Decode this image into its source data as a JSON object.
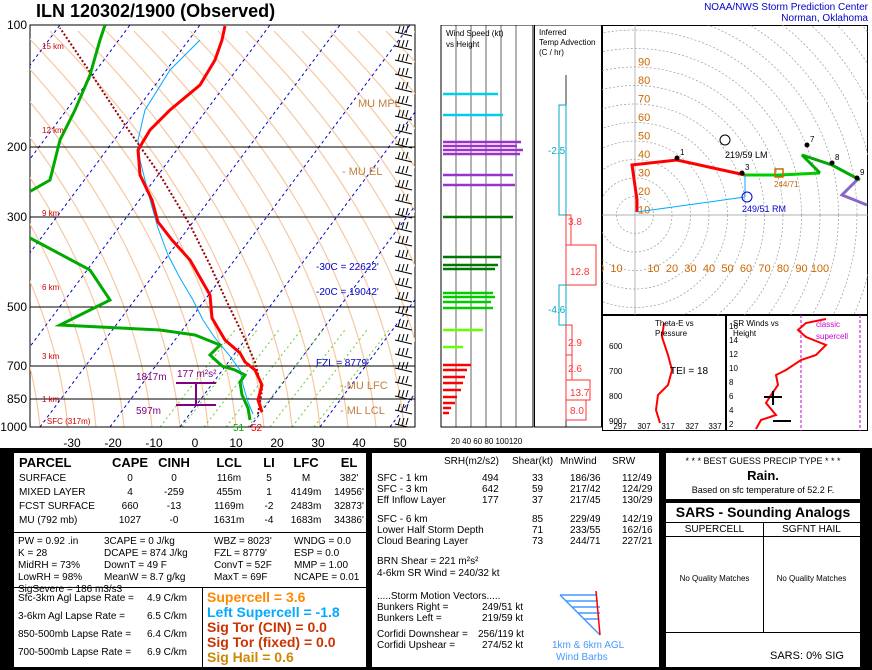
{
  "header": {
    "title": "ILN   120302/1900  (Observed)",
    "spc_line1": "NOAA/NWS Storm Prediction Center",
    "spc_line2": "Norman, Oklahoma"
  },
  "skewt": {
    "pressure_labels": [
      "100",
      "200",
      "300",
      "500",
      "700",
      "850",
      "1000"
    ],
    "temp_labels": [
      "-30",
      "-20",
      "-10",
      "0",
      "10",
      "20",
      "30",
      "40",
      "50"
    ],
    "height_labels": [
      "15 km",
      "12 km",
      "9 km",
      "6 km",
      "3 km",
      "1 km",
      "- SFC (317m)"
    ],
    "annotations": {
      "mu_mpl": "MU MPL",
      "mu_el": "- MU EL",
      "minus30": "-30C = 22622'",
      "minus20": "-20C = 19042'",
      "fzl": "FZL = 8779'",
      "mu_lfc": "- MU LFC",
      "ml_lcl": "- ML LCL",
      "eff_top": "1817m",
      "eff_srh": "177 m²s²",
      "eff_bot": "597m",
      "sfc_temps": "51",
      "sfc_temps2": "52"
    },
    "colors": {
      "temp": "#ff0000",
      "dewpoint": "#00aa00",
      "parcel": "#990000",
      "wetbulb": "#00aaff"
    }
  },
  "wind_speed_panel": {
    "title1": "Wind Speed (kt)",
    "title2": "vs Height",
    "axis": "20 40 60 80 100120"
  },
  "temp_adv_panel": {
    "title1": "Inferred",
    "title2": "Temp Advection",
    "title3": "(C / hr)",
    "values": [
      "-2.5",
      "3.8",
      "12.8",
      "-4.6",
      "2.9",
      "2.6",
      "13.7",
      "8.0"
    ]
  },
  "hodograph": {
    "ring_labels_x": [
      "20",
      "10",
      "10",
      "20",
      "30",
      "40",
      "50",
      "60",
      "70",
      "80",
      "90",
      "100"
    ],
    "ring_labels_y": [
      "90",
      "80",
      "70",
      "60",
      "50",
      "40",
      "30",
      "20",
      "10"
    ],
    "points": [
      "1",
      "3",
      "7",
      "8",
      "9"
    ],
    "lm": "219/59 LM",
    "rm": "249/51 RM",
    "mean": "244/71"
  },
  "theta_panel": {
    "title1": "Theta-E vs",
    "title2": "Pressure",
    "tei": "TEI = 18",
    "y_labels": [
      "600",
      "700",
      "800",
      "900"
    ],
    "x_labels": [
      "297",
      "307",
      "317",
      "327",
      "337"
    ]
  },
  "srwind_panel": {
    "title1": "SR Winds vs",
    "title2": "Height",
    "classic1": "classic",
    "classic2": "supercell",
    "y_labels": [
      "16",
      "14",
      "12",
      "10",
      "8",
      "6",
      "4",
      "2"
    ]
  },
  "parcel_table": {
    "headers": [
      "PARCEL",
      "CAPE",
      "CINH",
      "LCL",
      "LI",
      "LFC",
      "EL"
    ],
    "rows": [
      [
        "SURFACE",
        "0",
        "0",
        "116m",
        "5",
        "M",
        "382'"
      ],
      [
        "MIXED LAYER",
        "4",
        "-259",
        "455m",
        "1",
        "4149m",
        "14956'"
      ],
      [
        "FCST SURFACE",
        "660",
        "-13",
        "1169m",
        "-2",
        "2483m",
        "32873'"
      ],
      [
        "MU   (792 mb)",
        "1027",
        "-0",
        "1631m",
        "-4",
        "1683m",
        "34386'"
      ]
    ]
  },
  "indices": {
    "col1": [
      "PW = 0.92 .in",
      "K = 28",
      "MidRH = 73%",
      "LowRH = 98%",
      "SigSevere = 186 m3/s3"
    ],
    "col2": [
      "3CAPE = 0 J/kg",
      "DCAPE = 874 J/kg",
      "DownT = 49 F",
      "MeanW = 8.7 g/kg"
    ],
    "col3": [
      "WBZ = 8023'",
      "FZL = 8779'",
      "ConvT = 52F",
      "MaxT = 69F"
    ],
    "col4": [
      "WNDG = 0.0",
      "ESP = 0.0",
      "MMP = 1.00",
      "NCAPE = 0.01"
    ]
  },
  "lapse_rates": [
    [
      "Sfc-3km Agl Lapse Rate =",
      "4.9 C/km"
    ],
    [
      "3-6km Agl Lapse Rate =",
      "6.5 C/km"
    ],
    [
      "850-500mb Lapse Rate =",
      "6.4 C/km"
    ],
    [
      "700-500mb Lapse Rate =",
      "6.9 C/km"
    ]
  ],
  "severe_params": [
    {
      "label": "Supercell = 3.6",
      "color": "#ff8800"
    },
    {
      "label": "Left Supercell = -1.8",
      "color": "#00aaff"
    },
    {
      "label": "Sig Tor (CIN) = 0.0",
      "color": "#cc3300"
    },
    {
      "label": "Sig Tor (fixed) = 0.0",
      "color": "#cc3300"
    },
    {
      "label": "Sig Hail = 0.6",
      "color": "#cc8800"
    }
  ],
  "kinematics": {
    "headers": [
      "SRH(m2/s2)",
      "Shear(kt)",
      "MnWind",
      "SRW"
    ],
    "rows": [
      [
        "SFC - 1 km",
        "494",
        "33",
        "186/36",
        "112/49"
      ],
      [
        "SFC - 3 km",
        "642",
        "59",
        "217/42",
        "124/29"
      ],
      [
        "Eff Inflow Layer",
        "177",
        "37",
        "217/45",
        "130/29"
      ],
      [
        "SFC - 6 km",
        "",
        "85",
        "229/49",
        "142/19"
      ],
      [
        "Lower Half Storm Depth",
        "",
        "71",
        "233/55",
        "162/16"
      ],
      [
        "Cloud Bearing Layer",
        "",
        "73",
        "244/71",
        "227/21"
      ]
    ],
    "brn": "BRN Shear =  221 m²s²",
    "sr4to6": "4-6km SR Wind =      240/32 kt",
    "storm_vectors": ".....Storm Motion Vectors.....",
    "bunkers_r": [
      "Bunkers Right =",
      "249/51 kt"
    ],
    "bunkers_l": [
      "Bunkers Left =",
      "219/59 kt"
    ],
    "corfidi_d": [
      "Corfidi Downshear =",
      "256/119 kt"
    ],
    "corfidi_u": [
      "Corfidi Upshear =",
      "274/52 kt"
    ],
    "barb_label1": "1km & 6km AGL",
    "barb_label2": "Wind Barbs"
  },
  "precip": {
    "title": "* * * BEST GUESS PRECIP TYPE * * *",
    "type": "Rain.",
    "basis": "Based on sfc temperature of 52.2 F."
  },
  "sars": {
    "title": "SARS - Sounding Analogs",
    "col1": "SUPERCELL",
    "col2": "SGFNT HAIL",
    "no1": "No Quality Matches",
    "no2": "No Quality Matches",
    "sig": "SARS:  0% SIG"
  }
}
